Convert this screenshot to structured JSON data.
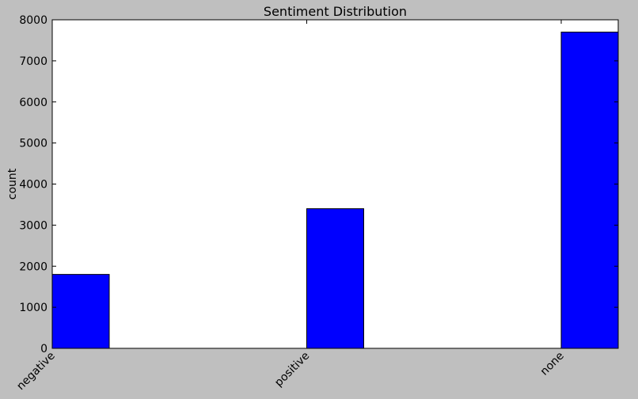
{
  "chart_data": {
    "type": "bar",
    "title": "Sentiment Distribution",
    "xlabel": "",
    "ylabel": "count",
    "categories": [
      "negative",
      "positive",
      "none"
    ],
    "values": [
      1800,
      3400,
      7700
    ],
    "ylim": [
      0,
      8000
    ],
    "yticks": [
      "0",
      "1000",
      "2000",
      "3000",
      "4000",
      "5000",
      "6000",
      "7000",
      "8000"
    ],
    "grid": false,
    "bar_color": "#0000ff",
    "background_color": "#bfbfbf",
    "plot_background_color": "#ffffff"
  }
}
